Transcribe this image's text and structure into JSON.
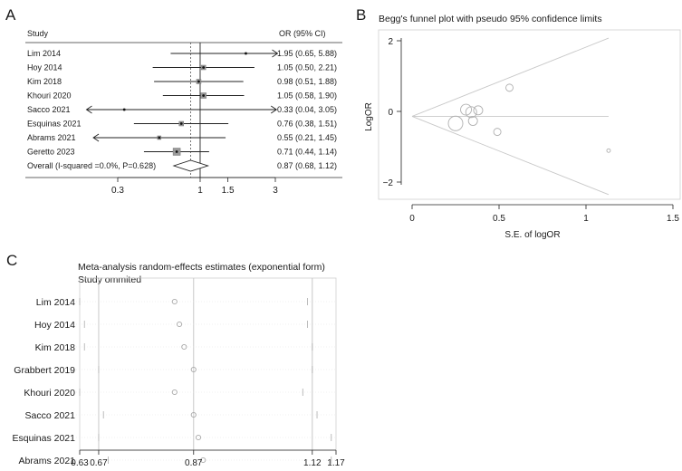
{
  "panels": {
    "a": {
      "letter": "A",
      "col_study": "Study",
      "col_or": "OR (95% CI)",
      "axis_ticks": [
        0.3,
        1,
        1.5,
        3
      ],
      "tick_labels": [
        "0.3",
        "1",
        "1.5",
        "3"
      ],
      "studies": [
        {
          "name": "Lim 2014",
          "or": 1.95,
          "lo": 0.65,
          "hi": 5.88,
          "ci_text": "1.95 (0.65, 5.88)",
          "box": 2,
          "arrow_left": false,
          "arrow_right": true
        },
        {
          "name": "Hoy 2014",
          "or": 1.05,
          "lo": 0.5,
          "hi": 2.21,
          "ci_text": "1.05 (0.50, 2.21)",
          "box": 5,
          "arrow_left": false,
          "arrow_right": false
        },
        {
          "name": "Kim 2018",
          "or": 0.98,
          "lo": 0.51,
          "hi": 1.88,
          "ci_text": "0.98 (0.51, 1.88)",
          "box": 5,
          "arrow_left": false,
          "arrow_right": false
        },
        {
          "name": "Khouri 2020",
          "or": 1.05,
          "lo": 0.58,
          "hi": 1.9,
          "ci_text": "1.05 (0.58, 1.90)",
          "box": 6,
          "arrow_left": false,
          "arrow_right": false
        },
        {
          "name": "Sacco 2021",
          "or": 0.33,
          "lo": 0.04,
          "hi": 3.05,
          "ci_text": "0.33 (0.04, 3.05)",
          "box": 2,
          "arrow_left": true,
          "arrow_right": true
        },
        {
          "name": "Esquinas 2021",
          "or": 0.76,
          "lo": 0.38,
          "hi": 1.51,
          "ci_text": "0.76 (0.38, 1.51)",
          "box": 5,
          "arrow_left": false,
          "arrow_right": false
        },
        {
          "name": "Abrams 2021",
          "or": 0.55,
          "lo": 0.21,
          "hi": 1.45,
          "ci_text": "0.55 (0.21, 1.45)",
          "box": 4,
          "arrow_left": true,
          "arrow_right": false
        },
        {
          "name": "Geretto 2023",
          "or": 0.71,
          "lo": 0.44,
          "hi": 1.14,
          "ci_text": "0.71 (0.44, 1.14)",
          "box": 8,
          "arrow_left": false,
          "arrow_right": false
        }
      ],
      "overall": {
        "name": "Overall (I-squared =0.0%, P=0.628)",
        "or": 0.87,
        "lo": 0.68,
        "hi": 1.12,
        "ci_text": "0.87 (0.68, 1.12)"
      }
    },
    "b": {
      "letter": "B",
      "title": "Begg's funnel plot with pseudo 95% confidence limits",
      "xlabel": "S.E. of logOR",
      "ylabel": "LogOR",
      "x_ticks": [
        0,
        0.5,
        1,
        1.5
      ],
      "x_tick_labels": [
        "0",
        "0.5",
        "1",
        "1.5"
      ],
      "y_ticks": [
        2,
        0,
        -2
      ],
      "y_tick_labels": [
        "2",
        "0",
        "−2"
      ],
      "pooled_logor": -0.14,
      "points": [
        {
          "se": 0.56,
          "logor": 0.67,
          "size": 4
        },
        {
          "se": 0.31,
          "logor": 0.05,
          "size": 6
        },
        {
          "se": 0.34,
          "logor": -0.02,
          "size": 6
        },
        {
          "se": 0.38,
          "logor": 0.03,
          "size": 5
        },
        {
          "se": 0.35,
          "logor": -0.27,
          "size": 5
        },
        {
          "se": 0.25,
          "logor": -0.34,
          "size": 8
        },
        {
          "se": 0.49,
          "logor": -0.58,
          "size": 4
        },
        {
          "se": 1.13,
          "logor": -1.11,
          "size": 2
        }
      ]
    },
    "c": {
      "letter": "C",
      "title_line1": "Meta-analysis random-effects estimates (exponential form)",
      "title_line2": "Study ommited",
      "axis_ticks": [
        0.63,
        0.67,
        0.87,
        1.12,
        1.17
      ],
      "tick_labels": [
        "0.63",
        "0.67",
        "0.87",
        "1.12",
        "1.17"
      ],
      "xmin": 0.63,
      "xmax": 1.17,
      "ref_lines": [
        0.67,
        0.87,
        1.12
      ],
      "studies": [
        {
          "name": "Lim 2014",
          "est": 0.83,
          "lo": 0.63,
          "hi": 1.11
        },
        {
          "name": "Hoy 2014",
          "est": 0.84,
          "lo": 0.64,
          "hi": 1.11
        },
        {
          "name": "Kim 2018",
          "est": 0.85,
          "lo": 0.64,
          "hi": 1.12
        },
        {
          "name": "Grabbert 2019",
          "est": 0.87,
          "lo": 0.67,
          "hi": 1.12
        },
        {
          "name": "Khouri 2020",
          "est": 0.83,
          "lo": 0.63,
          "hi": 1.1
        },
        {
          "name": "Sacco 2021",
          "est": 0.87,
          "lo": 0.68,
          "hi": 1.13
        },
        {
          "name": "Esquinas 2021",
          "est": 0.88,
          "lo": 0.67,
          "hi": 1.16
        },
        {
          "name": "Abrams 2021",
          "est": 0.89,
          "lo": 0.69,
          "hi": 1.16
        }
      ]
    }
  },
  "chart_data": [
    {
      "type": "forest",
      "scale": "log",
      "columns": [
        "Study",
        "OR (95% CI)"
      ],
      "categories": [
        "Lim 2014",
        "Hoy 2014",
        "Kim 2018",
        "Khouri 2020",
        "Sacco 2021",
        "Esquinas 2021",
        "Abrams 2021",
        "Geretto 2023",
        "Overall (I-squared =0.0%, P=0.628)"
      ],
      "or": [
        1.95,
        1.05,
        0.98,
        1.05,
        0.33,
        0.76,
        0.55,
        0.71,
        0.87
      ],
      "ci_low": [
        0.65,
        0.5,
        0.51,
        0.58,
        0.04,
        0.38,
        0.21,
        0.44,
        0.68
      ],
      "ci_high": [
        5.88,
        2.21,
        1.88,
        1.9,
        3.05,
        1.51,
        1.45,
        1.14,
        1.12
      ],
      "xticks": [
        0.3,
        1,
        1.5,
        3
      ]
    },
    {
      "type": "scatter",
      "title": "Begg's funnel plot with pseudo 95% confidence limits",
      "xlabel": "S.E. of logOR",
      "ylabel": "LogOR",
      "xlim": [
        0,
        1.5
      ],
      "ylim": [
        -2,
        2
      ],
      "x": [
        0.56,
        0.31,
        0.34,
        0.38,
        0.35,
        0.25,
        0.49,
        1.13
      ],
      "y": [
        0.67,
        0.05,
        -0.02,
        0.03,
        -0.27,
        -0.34,
        -0.58,
        -1.11
      ]
    },
    {
      "type": "forest",
      "title": "Meta-analysis random-effects estimates (exponential form)",
      "subtitle": "Study ommited",
      "categories": [
        "Lim 2014",
        "Hoy 2014",
        "Kim 2018",
        "Grabbert 2019",
        "Khouri 2020",
        "Sacco 2021",
        "Esquinas 2021",
        "Abrams 2021"
      ],
      "estimate": [
        0.83,
        0.84,
        0.85,
        0.87,
        0.83,
        0.87,
        0.88,
        0.89
      ],
      "ci_low": [
        0.63,
        0.64,
        0.64,
        0.67,
        0.63,
        0.68,
        0.67,
        0.69
      ],
      "ci_high": [
        1.11,
        1.11,
        1.12,
        1.12,
        1.1,
        1.13,
        1.16,
        1.16
      ],
      "xticks": [
        0.63,
        0.67,
        0.87,
        1.12,
        1.17
      ]
    }
  ]
}
